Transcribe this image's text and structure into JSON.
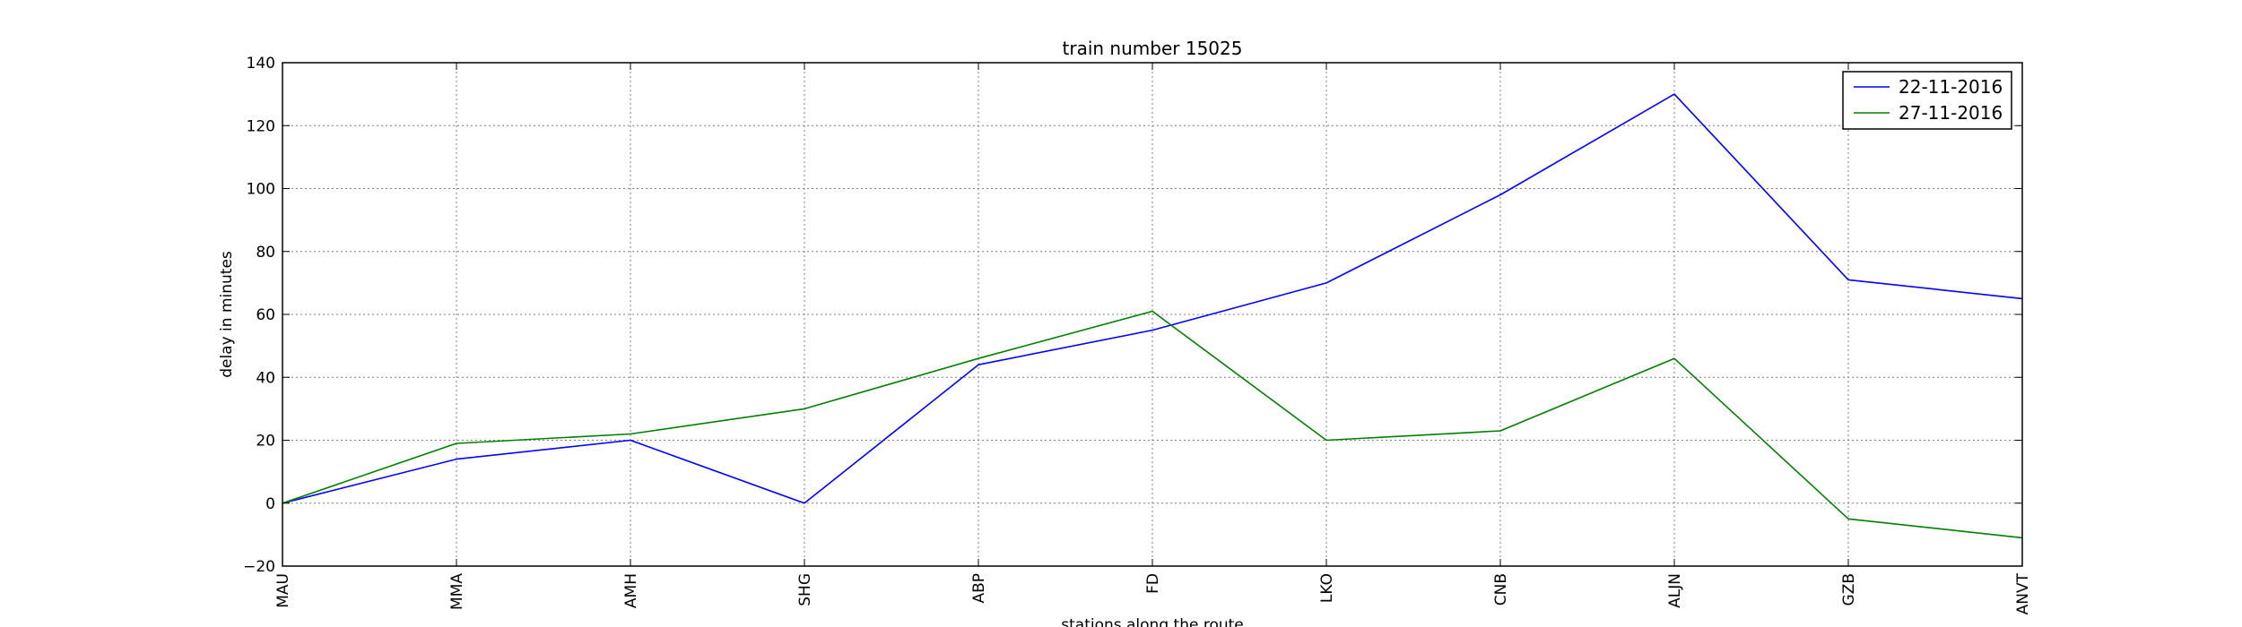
{
  "chart_data": {
    "type": "line",
    "title": "train number 15025",
    "xlabel": "stations along the route",
    "ylabel": "delay in minutes",
    "categories": [
      "MAU",
      "MMA",
      "AMH",
      "SHG",
      "ABP",
      "FD",
      "LKO",
      "CNB",
      "ALJN",
      "GZB",
      "ANVT"
    ],
    "ylim": [
      -20,
      140
    ],
    "yticks": [
      -20,
      0,
      20,
      40,
      60,
      80,
      100,
      120,
      140
    ],
    "yticklabels": [
      "−20",
      "0",
      "20",
      "40",
      "60",
      "80",
      "100",
      "120",
      "140"
    ],
    "grid": true,
    "legend_position": "top-right",
    "series": [
      {
        "name": "22-11-2016",
        "color": "#0000ff",
        "values": [
          0,
          14,
          20,
          0,
          44,
          55,
          70,
          98,
          130,
          71,
          65
        ]
      },
      {
        "name": "27-11-2016",
        "color": "#008000",
        "values": [
          0,
          19,
          22,
          30,
          46,
          61,
          20,
          23,
          46,
          -5,
          -11
        ]
      }
    ]
  }
}
